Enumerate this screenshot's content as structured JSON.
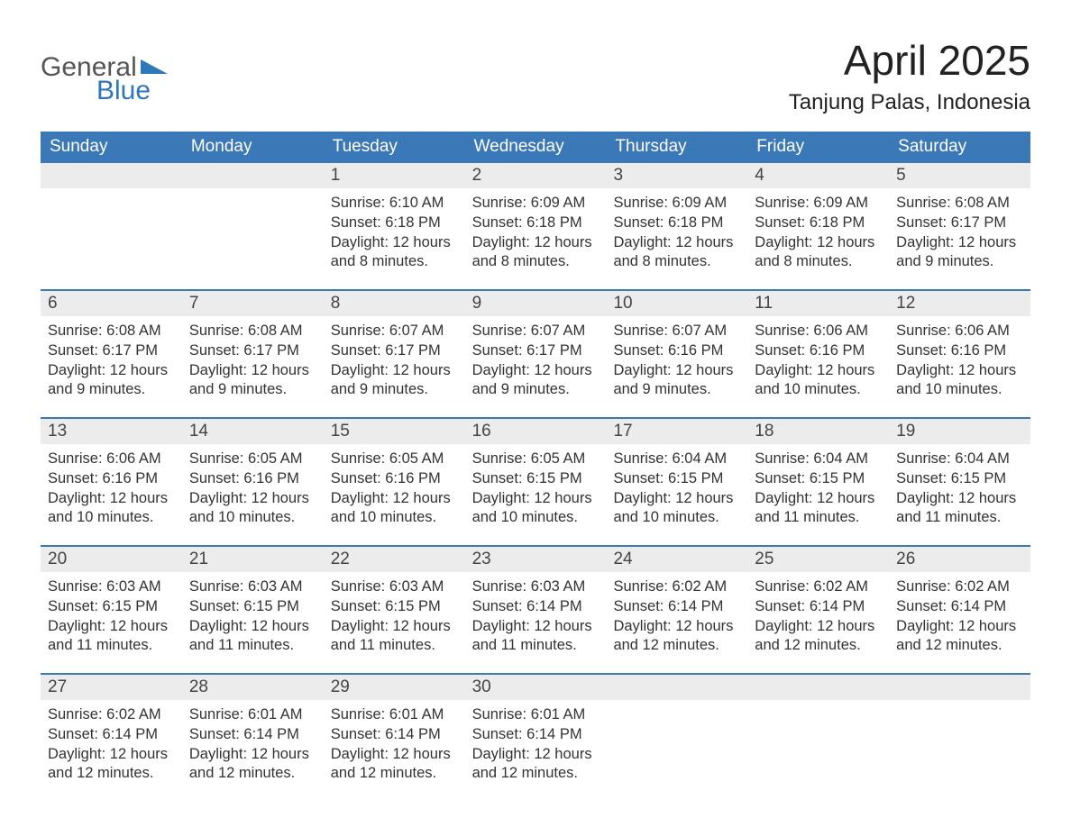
{
  "colors": {
    "header_bg": "#3b78b8",
    "header_text": "#ffffff",
    "daynum_bg": "#ececec",
    "row_divider": "#3b78b8",
    "body_text": "#333333",
    "logo_general": "#555555",
    "logo_blue": "#2f77bb",
    "page_bg": "#ffffff"
  },
  "typography": {
    "title_fontsize": 46,
    "location_fontsize": 24,
    "dow_fontsize": 19,
    "daynum_fontsize": 19,
    "body_fontsize": 16.5,
    "logo_fontsize": 30
  },
  "logo": {
    "word1": "General",
    "word2": "Blue"
  },
  "title": "April 2025",
  "location": "Tanjung Palas, Indonesia",
  "days_of_week": [
    "Sunday",
    "Monday",
    "Tuesday",
    "Wednesday",
    "Thursday",
    "Friday",
    "Saturday"
  ],
  "weeks": [
    [
      {
        "num": "",
        "lines": []
      },
      {
        "num": "",
        "lines": []
      },
      {
        "num": "1",
        "lines": [
          "Sunrise: 6:10 AM",
          "Sunset: 6:18 PM",
          "Daylight: 12 hours and 8 minutes."
        ]
      },
      {
        "num": "2",
        "lines": [
          "Sunrise: 6:09 AM",
          "Sunset: 6:18 PM",
          "Daylight: 12 hours and 8 minutes."
        ]
      },
      {
        "num": "3",
        "lines": [
          "Sunrise: 6:09 AM",
          "Sunset: 6:18 PM",
          "Daylight: 12 hours and 8 minutes."
        ]
      },
      {
        "num": "4",
        "lines": [
          "Sunrise: 6:09 AM",
          "Sunset: 6:18 PM",
          "Daylight: 12 hours and 8 minutes."
        ]
      },
      {
        "num": "5",
        "lines": [
          "Sunrise: 6:08 AM",
          "Sunset: 6:17 PM",
          "Daylight: 12 hours and 9 minutes."
        ]
      }
    ],
    [
      {
        "num": "6",
        "lines": [
          "Sunrise: 6:08 AM",
          "Sunset: 6:17 PM",
          "Daylight: 12 hours and 9 minutes."
        ]
      },
      {
        "num": "7",
        "lines": [
          "Sunrise: 6:08 AM",
          "Sunset: 6:17 PM",
          "Daylight: 12 hours and 9 minutes."
        ]
      },
      {
        "num": "8",
        "lines": [
          "Sunrise: 6:07 AM",
          "Sunset: 6:17 PM",
          "Daylight: 12 hours and 9 minutes."
        ]
      },
      {
        "num": "9",
        "lines": [
          "Sunrise: 6:07 AM",
          "Sunset: 6:17 PM",
          "Daylight: 12 hours and 9 minutes."
        ]
      },
      {
        "num": "10",
        "lines": [
          "Sunrise: 6:07 AM",
          "Sunset: 6:16 PM",
          "Daylight: 12 hours and 9 minutes."
        ]
      },
      {
        "num": "11",
        "lines": [
          "Sunrise: 6:06 AM",
          "Sunset: 6:16 PM",
          "Daylight: 12 hours and 10 minutes."
        ]
      },
      {
        "num": "12",
        "lines": [
          "Sunrise: 6:06 AM",
          "Sunset: 6:16 PM",
          "Daylight: 12 hours and 10 minutes."
        ]
      }
    ],
    [
      {
        "num": "13",
        "lines": [
          "Sunrise: 6:06 AM",
          "Sunset: 6:16 PM",
          "Daylight: 12 hours and 10 minutes."
        ]
      },
      {
        "num": "14",
        "lines": [
          "Sunrise: 6:05 AM",
          "Sunset: 6:16 PM",
          "Daylight: 12 hours and 10 minutes."
        ]
      },
      {
        "num": "15",
        "lines": [
          "Sunrise: 6:05 AM",
          "Sunset: 6:16 PM",
          "Daylight: 12 hours and 10 minutes."
        ]
      },
      {
        "num": "16",
        "lines": [
          "Sunrise: 6:05 AM",
          "Sunset: 6:15 PM",
          "Daylight: 12 hours and 10 minutes."
        ]
      },
      {
        "num": "17",
        "lines": [
          "Sunrise: 6:04 AM",
          "Sunset: 6:15 PM",
          "Daylight: 12 hours and 10 minutes."
        ]
      },
      {
        "num": "18",
        "lines": [
          "Sunrise: 6:04 AM",
          "Sunset: 6:15 PM",
          "Daylight: 12 hours and 11 minutes."
        ]
      },
      {
        "num": "19",
        "lines": [
          "Sunrise: 6:04 AM",
          "Sunset: 6:15 PM",
          "Daylight: 12 hours and 11 minutes."
        ]
      }
    ],
    [
      {
        "num": "20",
        "lines": [
          "Sunrise: 6:03 AM",
          "Sunset: 6:15 PM",
          "Daylight: 12 hours and 11 minutes."
        ]
      },
      {
        "num": "21",
        "lines": [
          "Sunrise: 6:03 AM",
          "Sunset: 6:15 PM",
          "Daylight: 12 hours and 11 minutes."
        ]
      },
      {
        "num": "22",
        "lines": [
          "Sunrise: 6:03 AM",
          "Sunset: 6:15 PM",
          "Daylight: 12 hours and 11 minutes."
        ]
      },
      {
        "num": "23",
        "lines": [
          "Sunrise: 6:03 AM",
          "Sunset: 6:14 PM",
          "Daylight: 12 hours and 11 minutes."
        ]
      },
      {
        "num": "24",
        "lines": [
          "Sunrise: 6:02 AM",
          "Sunset: 6:14 PM",
          "Daylight: 12 hours and 12 minutes."
        ]
      },
      {
        "num": "25",
        "lines": [
          "Sunrise: 6:02 AM",
          "Sunset: 6:14 PM",
          "Daylight: 12 hours and 12 minutes."
        ]
      },
      {
        "num": "26",
        "lines": [
          "Sunrise: 6:02 AM",
          "Sunset: 6:14 PM",
          "Daylight: 12 hours and 12 minutes."
        ]
      }
    ],
    [
      {
        "num": "27",
        "lines": [
          "Sunrise: 6:02 AM",
          "Sunset: 6:14 PM",
          "Daylight: 12 hours and 12 minutes."
        ]
      },
      {
        "num": "28",
        "lines": [
          "Sunrise: 6:01 AM",
          "Sunset: 6:14 PM",
          "Daylight: 12 hours and 12 minutes."
        ]
      },
      {
        "num": "29",
        "lines": [
          "Sunrise: 6:01 AM",
          "Sunset: 6:14 PM",
          "Daylight: 12 hours and 12 minutes."
        ]
      },
      {
        "num": "30",
        "lines": [
          "Sunrise: 6:01 AM",
          "Sunset: 6:14 PM",
          "Daylight: 12 hours and 12 minutes."
        ]
      },
      {
        "num": "",
        "lines": []
      },
      {
        "num": "",
        "lines": []
      },
      {
        "num": "",
        "lines": []
      }
    ]
  ]
}
